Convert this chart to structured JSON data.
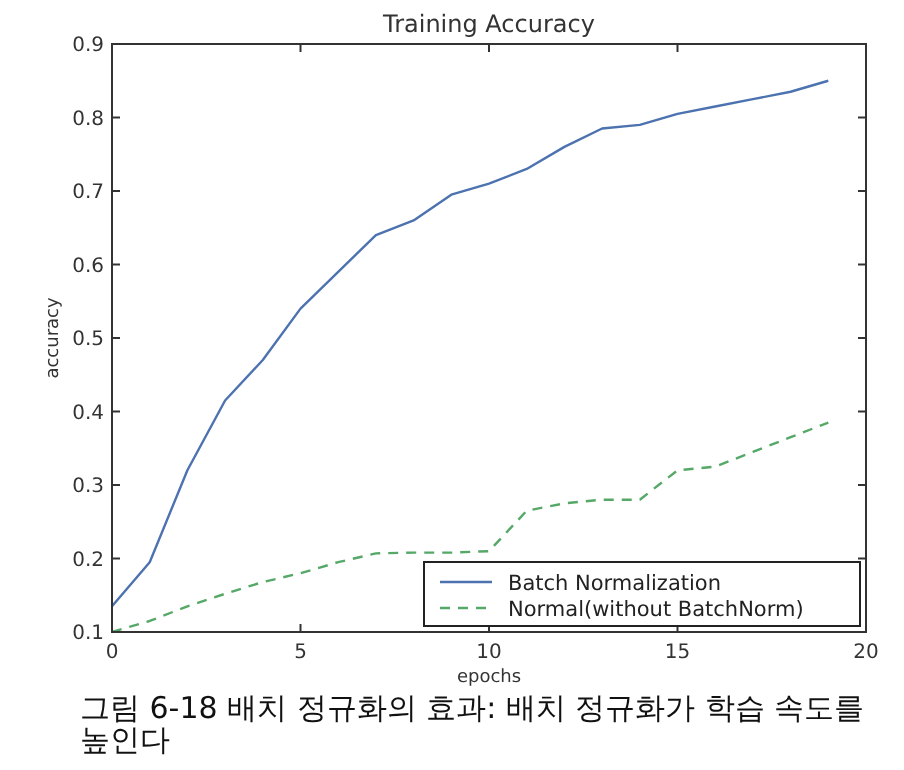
{
  "chart_data": {
    "type": "line",
    "title": "Training Accuracy",
    "xlabel": "epochs",
    "ylabel": "accuracy",
    "x": [
      0,
      1,
      2,
      3,
      4,
      5,
      6,
      7,
      8,
      9,
      10,
      11,
      12,
      13,
      14,
      15,
      16,
      17,
      18,
      19
    ],
    "series": [
      {
        "name": "Batch Normalization",
        "color": "#4c72b0",
        "line_style": "solid",
        "values": [
          0.135,
          0.195,
          0.32,
          0.415,
          0.47,
          0.54,
          0.59,
          0.64,
          0.66,
          0.695,
          0.71,
          0.73,
          0.76,
          0.785,
          0.79,
          0.805,
          0.815,
          0.825,
          0.835,
          0.85
        ]
      },
      {
        "name": "Normal(without BatchNorm)",
        "color": "#55a868",
        "line_style": "dashed",
        "values": [
          0.1,
          0.115,
          0.135,
          0.152,
          0.168,
          0.18,
          0.195,
          0.207,
          0.208,
          0.208,
          0.21,
          0.265,
          0.275,
          0.28,
          0.28,
          0.32,
          0.325,
          0.345,
          0.365,
          0.385
        ]
      }
    ],
    "xlim": [
      0,
      20
    ],
    "ylim": [
      0.1,
      0.9
    ],
    "xticks": [
      0,
      5,
      10,
      15,
      20
    ],
    "yticks": [
      0.1,
      0.2,
      0.3,
      0.4,
      0.5,
      0.6,
      0.7,
      0.8,
      0.9
    ],
    "legend": "bottom right",
    "grid": false,
    "marker": "none",
    "annotations": [
      "그림 6-18 배치 정규화의 효과: 배치 정규화가 학습 속도를 높인다"
    ]
  }
}
